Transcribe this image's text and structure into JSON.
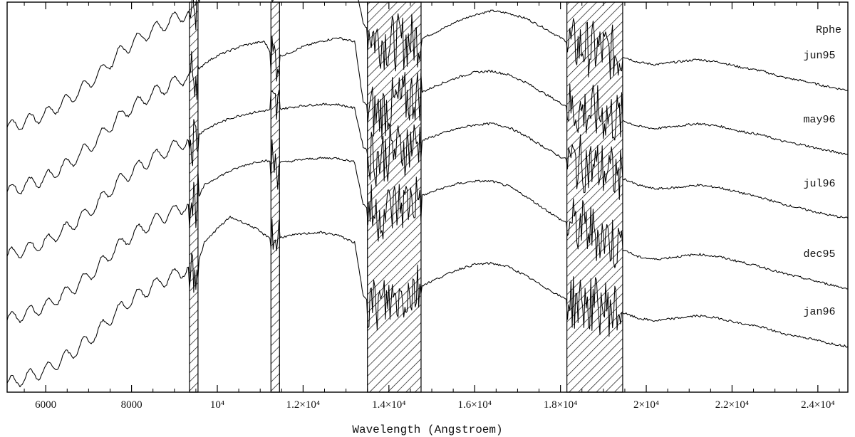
{
  "chart_data": {
    "type": "line",
    "title": "Rphe",
    "xlabel": "Wavelength (Angstroem)",
    "ylabel": "",
    "xlim": [
      5100,
      24700
    ],
    "x_ticks": [
      {
        "value": 6000,
        "label": "6000"
      },
      {
        "value": 8000,
        "label": "8000"
      },
      {
        "value": 10000,
        "label": "10⁴"
      },
      {
        "value": 12000,
        "label": "1.2×10⁴"
      },
      {
        "value": 14000,
        "label": "1.4×10⁴"
      },
      {
        "value": 16000,
        "label": "1.6×10⁴"
      },
      {
        "value": 18000,
        "label": "1.8×10⁴"
      },
      {
        "value": 20000,
        "label": "2×10⁴"
      },
      {
        "value": 22000,
        "label": "2.2×10⁴"
      },
      {
        "value": 24000,
        "label": "2.4×10⁴"
      }
    ],
    "masked_regions": [
      [
        9350,
        9550
      ],
      [
        11250,
        11450
      ],
      [
        13500,
        14750
      ],
      [
        18150,
        19450
      ]
    ],
    "series": [
      {
        "name": "jun95",
        "offset": 4,
        "points": [
          [
            5100,
            0.1
          ],
          [
            5400,
            0.16
          ],
          [
            5700,
            0.24
          ],
          [
            6000,
            0.3
          ],
          [
            6200,
            0.4
          ],
          [
            6450,
            0.5
          ],
          [
            6700,
            0.62
          ],
          [
            6950,
            0.76
          ],
          [
            7200,
            0.9
          ],
          [
            7450,
            1.08
          ],
          [
            7650,
            1.22
          ],
          [
            7900,
            1.36
          ],
          [
            8150,
            1.48
          ],
          [
            8400,
            1.58
          ],
          [
            8650,
            1.68
          ],
          [
            8900,
            1.76
          ],
          [
            9150,
            1.84
          ],
          [
            9350,
            1.92
          ],
          [
            9550,
            1.98
          ],
          [
            9700,
            2.4
          ],
          [
            10000,
            2.62
          ],
          [
            10300,
            2.8
          ],
          [
            10600,
            2.66
          ],
          [
            10900,
            2.6
          ],
          [
            11100,
            2.55
          ],
          [
            11300,
            2.48
          ],
          [
            11600,
            2.5
          ],
          [
            12000,
            2.52
          ],
          [
            12400,
            2.54
          ],
          [
            12800,
            2.52
          ],
          [
            13200,
            2.4
          ],
          [
            13400,
            1.72
          ],
          [
            13700,
            1.5
          ],
          [
            14000,
            1.42
          ],
          [
            14400,
            1.44
          ],
          [
            14800,
            1.5
          ],
          [
            15200,
            1.62
          ],
          [
            15600,
            1.76
          ],
          [
            16000,
            1.86
          ],
          [
            16400,
            1.92
          ],
          [
            16800,
            1.88
          ],
          [
            17200,
            1.8
          ],
          [
            17600,
            1.66
          ],
          [
            18000,
            1.5
          ],
          [
            18300,
            1.38
          ],
          [
            18600,
            1.34
          ],
          [
            19000,
            1.3
          ],
          [
            19400,
            1.22
          ],
          [
            19800,
            1.12
          ],
          [
            20200,
            1.08
          ],
          [
            20700,
            1.12
          ],
          [
            21200,
            1.16
          ],
          [
            21700,
            1.12
          ],
          [
            22200,
            1.04
          ],
          [
            22700,
            0.98
          ],
          [
            23200,
            0.88
          ],
          [
            23700,
            0.82
          ],
          [
            24200,
            0.74
          ],
          [
            24700,
            0.68
          ]
        ]
      },
      {
        "name": "may96",
        "offset": 3,
        "points": [
          [
            5100,
            0.1
          ],
          [
            5400,
            0.16
          ],
          [
            5700,
            0.24
          ],
          [
            6000,
            0.3
          ],
          [
            6200,
            0.4
          ],
          [
            6450,
            0.5
          ],
          [
            6700,
            0.62
          ],
          [
            6950,
            0.76
          ],
          [
            7200,
            0.9
          ],
          [
            7450,
            1.08
          ],
          [
            7650,
            1.22
          ],
          [
            7900,
            1.36
          ],
          [
            8150,
            1.48
          ],
          [
            8400,
            1.58
          ],
          [
            8650,
            1.68
          ],
          [
            8900,
            1.76
          ],
          [
            9150,
            1.84
          ],
          [
            9350,
            1.92
          ],
          [
            9550,
            1.98
          ],
          [
            9700,
            2.1
          ],
          [
            10000,
            2.22
          ],
          [
            10300,
            2.3
          ],
          [
            10600,
            2.38
          ],
          [
            10900,
            2.42
          ],
          [
            11100,
            2.44
          ],
          [
            11300,
            2.2
          ],
          [
            11600,
            2.24
          ],
          [
            12000,
            2.36
          ],
          [
            12400,
            2.44
          ],
          [
            12800,
            2.5
          ],
          [
            13200,
            2.44
          ],
          [
            13400,
            1.5
          ],
          [
            13700,
            1.3
          ],
          [
            14000,
            1.42
          ],
          [
            14400,
            1.54
          ],
          [
            14800,
            1.66
          ],
          [
            15200,
            1.78
          ],
          [
            15600,
            1.88
          ],
          [
            16000,
            1.96
          ],
          [
            16400,
            1.98
          ],
          [
            16800,
            1.92
          ],
          [
            17200,
            1.8
          ],
          [
            17600,
            1.64
          ],
          [
            18000,
            1.48
          ],
          [
            18300,
            1.38
          ],
          [
            18600,
            1.34
          ],
          [
            19000,
            1.3
          ],
          [
            19400,
            1.22
          ],
          [
            19800,
            1.12
          ],
          [
            20200,
            1.08
          ],
          [
            20700,
            1.12
          ],
          [
            21200,
            1.16
          ],
          [
            21700,
            1.12
          ],
          [
            22200,
            1.04
          ],
          [
            22700,
            0.98
          ],
          [
            23200,
            0.88
          ],
          [
            23700,
            0.82
          ],
          [
            24200,
            0.74
          ],
          [
            24700,
            0.68
          ]
        ]
      },
      {
        "name": "jul96",
        "offset": 2,
        "points": [
          [
            5100,
            0.1
          ],
          [
            5400,
            0.16
          ],
          [
            5700,
            0.24
          ],
          [
            6000,
            0.3
          ],
          [
            6200,
            0.4
          ],
          [
            6450,
            0.5
          ],
          [
            6700,
            0.62
          ],
          [
            6950,
            0.76
          ],
          [
            7200,
            0.9
          ],
          [
            7450,
            1.08
          ],
          [
            7650,
            1.22
          ],
          [
            7900,
            1.36
          ],
          [
            8150,
            1.48
          ],
          [
            8400,
            1.58
          ],
          [
            8650,
            1.68
          ],
          [
            8900,
            1.76
          ],
          [
            9150,
            1.84
          ],
          [
            9350,
            1.92
          ],
          [
            9550,
            1.98
          ],
          [
            9700,
            2.06
          ],
          [
            10000,
            2.16
          ],
          [
            10300,
            2.24
          ],
          [
            10600,
            2.3
          ],
          [
            10900,
            2.34
          ],
          [
            11100,
            2.36
          ],
          [
            11300,
            2.38
          ],
          [
            11600,
            2.4
          ],
          [
            12000,
            2.44
          ],
          [
            12400,
            2.46
          ],
          [
            12800,
            2.46
          ],
          [
            13200,
            2.4
          ],
          [
            13400,
            1.8
          ],
          [
            13700,
            1.62
          ],
          [
            14000,
            1.7
          ],
          [
            14400,
            1.8
          ],
          [
            14800,
            1.9
          ],
          [
            15200,
            2.0
          ],
          [
            15600,
            2.08
          ],
          [
            16000,
            2.14
          ],
          [
            16400,
            2.16
          ],
          [
            16800,
            2.1
          ],
          [
            17200,
            1.96
          ],
          [
            17600,
            1.8
          ],
          [
            18000,
            1.64
          ],
          [
            18300,
            1.56
          ],
          [
            18600,
            1.52
          ],
          [
            19000,
            1.44
          ],
          [
            19400,
            1.32
          ],
          [
            19800,
            1.2
          ],
          [
            20200,
            1.14
          ],
          [
            20700,
            1.16
          ],
          [
            21200,
            1.2
          ],
          [
            21700,
            1.16
          ],
          [
            22200,
            1.08
          ],
          [
            22700,
            1.0
          ],
          [
            23200,
            0.9
          ],
          [
            23700,
            0.82
          ],
          [
            24200,
            0.74
          ],
          [
            24700,
            0.68
          ]
        ]
      },
      {
        "name": "dec95",
        "offset": 1,
        "points": [
          [
            5100,
            0.1
          ],
          [
            5400,
            0.16
          ],
          [
            5700,
            0.24
          ],
          [
            6000,
            0.3
          ],
          [
            6200,
            0.4
          ],
          [
            6450,
            0.5
          ],
          [
            6700,
            0.62
          ],
          [
            6950,
            0.76
          ],
          [
            7200,
            0.9
          ],
          [
            7450,
            1.08
          ],
          [
            7650,
            1.22
          ],
          [
            7900,
            1.36
          ],
          [
            8150,
            1.48
          ],
          [
            8400,
            1.58
          ],
          [
            8650,
            1.68
          ],
          [
            8900,
            1.76
          ],
          [
            9150,
            1.84
          ],
          [
            9350,
            1.92
          ],
          [
            9550,
            1.98
          ],
          [
            9700,
            2.2
          ],
          [
            10000,
            2.32
          ],
          [
            10300,
            2.42
          ],
          [
            10600,
            2.5
          ],
          [
            10900,
            2.56
          ],
          [
            11100,
            2.58
          ],
          [
            11300,
            2.56
          ],
          [
            11600,
            2.56
          ],
          [
            12000,
            2.6
          ],
          [
            12400,
            2.62
          ],
          [
            12800,
            2.62
          ],
          [
            13200,
            2.56
          ],
          [
            13400,
            1.9
          ],
          [
            13700,
            1.72
          ],
          [
            14000,
            1.82
          ],
          [
            14400,
            1.92
          ],
          [
            14800,
            2.04
          ],
          [
            15200,
            2.14
          ],
          [
            15600,
            2.22
          ],
          [
            16000,
            2.26
          ],
          [
            16400,
            2.26
          ],
          [
            16800,
            2.18
          ],
          [
            17200,
            2.02
          ],
          [
            17600,
            1.84
          ],
          [
            18000,
            1.66
          ],
          [
            18300,
            1.56
          ],
          [
            18600,
            1.52
          ],
          [
            19000,
            1.4
          ],
          [
            19400,
            1.22
          ],
          [
            19800,
            1.08
          ],
          [
            20200,
            1.04
          ],
          [
            20700,
            1.08
          ],
          [
            21200,
            1.12
          ],
          [
            21700,
            1.08
          ],
          [
            22200,
            1.0
          ],
          [
            22700,
            0.92
          ],
          [
            23200,
            0.82
          ],
          [
            23700,
            0.74
          ],
          [
            24200,
            0.66
          ],
          [
            24700,
            0.58
          ]
        ]
      },
      {
        "name": "jan96",
        "offset": 0,
        "points": [
          [
            5100,
            0.1
          ],
          [
            5400,
            0.16
          ],
          [
            5700,
            0.24
          ],
          [
            6000,
            0.3
          ],
          [
            6200,
            0.4
          ],
          [
            6450,
            0.5
          ],
          [
            6700,
            0.62
          ],
          [
            6950,
            0.76
          ],
          [
            7200,
            0.9
          ],
          [
            7450,
            1.08
          ],
          [
            7650,
            1.22
          ],
          [
            7900,
            1.36
          ],
          [
            8150,
            1.48
          ],
          [
            8400,
            1.58
          ],
          [
            8650,
            1.68
          ],
          [
            8900,
            1.76
          ],
          [
            9150,
            1.84
          ],
          [
            9350,
            1.92
          ],
          [
            9550,
            1.98
          ],
          [
            9700,
            2.3
          ],
          [
            10000,
            2.52
          ],
          [
            10300,
            2.7
          ],
          [
            10600,
            2.62
          ],
          [
            10900,
            2.52
          ],
          [
            11100,
            2.42
          ],
          [
            11300,
            2.36
          ],
          [
            11600,
            2.4
          ],
          [
            12000,
            2.44
          ],
          [
            12400,
            2.46
          ],
          [
            12800,
            2.42
          ],
          [
            13200,
            2.3
          ],
          [
            13400,
            1.48
          ],
          [
            13700,
            1.3
          ],
          [
            14000,
            1.38
          ],
          [
            14400,
            1.5
          ],
          [
            14800,
            1.64
          ],
          [
            15200,
            1.76
          ],
          [
            15600,
            1.88
          ],
          [
            16000,
            1.96
          ],
          [
            16400,
            1.98
          ],
          [
            16800,
            1.92
          ],
          [
            17200,
            1.78
          ],
          [
            17600,
            1.62
          ],
          [
            18000,
            1.46
          ],
          [
            18300,
            1.38
          ],
          [
            18600,
            1.34
          ],
          [
            19000,
            1.3
          ],
          [
            19400,
            1.22
          ],
          [
            19800,
            1.12
          ],
          [
            20200,
            1.08
          ],
          [
            20700,
            1.12
          ],
          [
            21200,
            1.16
          ],
          [
            21700,
            1.12
          ],
          [
            22200,
            1.04
          ],
          [
            22700,
            0.98
          ],
          [
            23200,
            0.88
          ],
          [
            23700,
            0.82
          ],
          [
            24200,
            0.74
          ],
          [
            24700,
            0.68
          ]
        ]
      }
    ],
    "grid": false,
    "legend": "right"
  }
}
